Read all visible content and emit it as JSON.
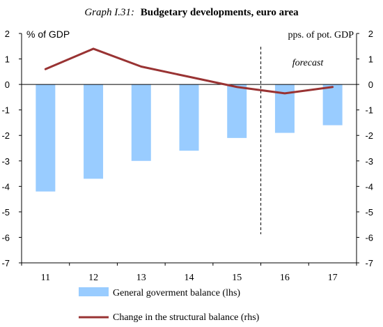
{
  "chart_data": {
    "type": "bar",
    "title_prefix": "Graph I.31:",
    "title": "Budgetary developments, euro area",
    "categories": [
      "11",
      "12",
      "13",
      "14",
      "15",
      "16",
      "17"
    ],
    "series": [
      {
        "name": "General goverment balance (lhs)",
        "type": "bar",
        "axis": "left",
        "color": "#99ccff",
        "values": [
          -4.2,
          -3.7,
          -3.0,
          -2.6,
          -2.1,
          -1.9,
          -1.6
        ]
      },
      {
        "name": "Change in the structural balance (rhs)",
        "type": "line",
        "axis": "right",
        "color": "#993333",
        "values": [
          0.6,
          1.4,
          0.7,
          0.3,
          -0.1,
          -0.35,
          -0.1
        ]
      }
    ],
    "ylabel_left": "% of GDP",
    "ylabel_right": "pps. of pot. GDP",
    "ylim_left": [
      -7,
      2
    ],
    "ylim_right": [
      -7,
      2
    ],
    "yticks_left": [
      "2",
      "1",
      "0",
      "-1",
      "-2",
      "-3",
      "-4",
      "-5",
      "-6",
      "-7"
    ],
    "yticks_right": [
      "2",
      "1",
      "0",
      "-1",
      "-2",
      "-3",
      "-4",
      "-5",
      "-6",
      "-7"
    ],
    "annotation": "forecast",
    "forecast_divider_between": [
      "15",
      "16"
    ],
    "grid": false,
    "legend_position": "bottom"
  }
}
